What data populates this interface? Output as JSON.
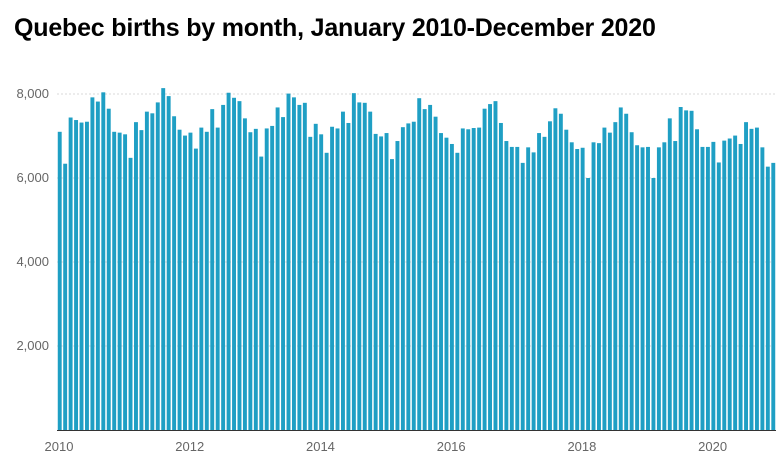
{
  "chart_data": {
    "type": "bar",
    "title": "Quebec births by month, January 2010-December 2020",
    "xlabel": "",
    "ylabel": "",
    "ylim": [
      0,
      8500
    ],
    "yticks": [
      2000,
      4000,
      6000,
      8000
    ],
    "ytick_labels": [
      "2,000",
      "4,000",
      "6,000",
      "8,000"
    ],
    "xticks": [
      "2010",
      "2012",
      "2014",
      "2016",
      "2018",
      "2020"
    ],
    "grid": true,
    "legend": "none",
    "colors": {
      "bar": "#1f9fc4",
      "grid": "#d9d9d9",
      "tick_text": "#666666"
    },
    "start": "2010-01",
    "end": "2020-12",
    "values": [
      7100,
      6340,
      7440,
      7380,
      7320,
      7340,
      7920,
      7820,
      8040,
      7650,
      7100,
      7080,
      7040,
      6480,
      7330,
      7140,
      7580,
      7540,
      7800,
      8140,
      7950,
      7470,
      7150,
      7010,
      7080,
      6700,
      7200,
      7100,
      7640,
      7200,
      7740,
      8030,
      7910,
      7830,
      7420,
      7090,
      7170,
      6510,
      7180,
      7240,
      7680,
      7450,
      8010,
      7920,
      7740,
      7790,
      6980,
      7290,
      7040,
      6600,
      7220,
      7180,
      7580,
      7310,
      8020,
      7800,
      7790,
      7580,
      7050,
      6990,
      7070,
      6450,
      6880,
      7210,
      7300,
      7340,
      7900,
      7640,
      7740,
      7460,
      7070,
      6960,
      6810,
      6600,
      7180,
      7160,
      7190,
      7200,
      7650,
      7760,
      7830,
      7310,
      6880,
      6740,
      6740,
      6360,
      6730,
      6610,
      7070,
      6980,
      7350,
      7660,
      7530,
      7150,
      6850,
      6690,
      6720,
      6000,
      6850,
      6830,
      7200,
      7080,
      7330,
      7680,
      7530,
      7090,
      6780,
      6730,
      6740,
      6000,
      6730,
      6850,
      7420,
      6880,
      7690,
      7610,
      7600,
      7160,
      6740,
      6740,
      6860,
      6370,
      6890,
      6940,
      7010,
      6810,
      7330,
      7170,
      7200,
      6730,
      6270,
      6360
    ]
  }
}
